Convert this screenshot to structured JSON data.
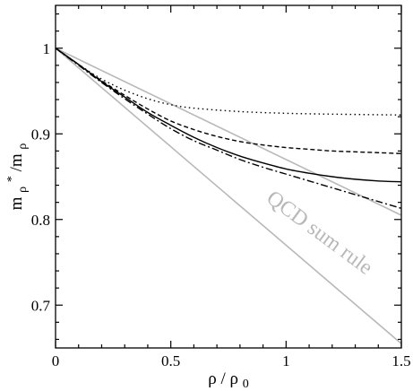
{
  "chart_data": {
    "type": "line",
    "xlabel": {
      "main": "ρ / ρ",
      "sub": "0"
    },
    "ylabel": {
      "main": "m",
      "sub1": "ρ",
      "sup": "*",
      "mid": "/m",
      "sub2": "ρ"
    },
    "xlim": [
      0,
      1.5
    ],
    "ylim": [
      0.65,
      1.05
    ],
    "xticks": [
      {
        "value": 0,
        "label": "0"
      },
      {
        "value": 0.5,
        "label": "0.5"
      },
      {
        "value": 1,
        "label": "1"
      },
      {
        "value": 1.5,
        "label": "1.5"
      }
    ],
    "yticks": [
      {
        "value": 0.7,
        "label": "0.7"
      },
      {
        "value": 0.8,
        "label": "0.8"
      },
      {
        "value": 0.9,
        "label": "0.9"
      },
      {
        "value": 1.0,
        "label": "1"
      }
    ],
    "grid": false,
    "annotation": {
      "text": "QCD sum rule",
      "color": "#b8b8b8"
    },
    "series": [
      {
        "style": "band-upper",
        "color": "#b8b8b8",
        "dash": "solid",
        "x": [
          0,
          1.5
        ],
        "y": [
          1.0,
          0.805
        ]
      },
      {
        "style": "band-lower",
        "color": "#b8b8b8",
        "dash": "solid",
        "x": [
          0,
          1.5
        ],
        "y": [
          1.0,
          0.655
        ]
      },
      {
        "style": "dotted",
        "color": "#000000",
        "dash": "dotted",
        "x": [
          0,
          0.1,
          0.2,
          0.3,
          0.4,
          0.5,
          0.6,
          0.8,
          1.0,
          1.2,
          1.5
        ],
        "y": [
          1.0,
          0.981,
          0.964,
          0.951,
          0.941,
          0.934,
          0.93,
          0.926,
          0.924,
          0.923,
          0.922
        ]
      },
      {
        "style": "dashed",
        "color": "#000000",
        "dash": "dashed",
        "x": [
          0,
          0.1,
          0.2,
          0.3,
          0.4,
          0.5,
          0.6,
          0.7,
          0.8,
          0.9,
          1.0,
          1.1,
          1.2,
          1.3,
          1.4,
          1.5
        ],
        "y": [
          1.0,
          0.981,
          0.962,
          0.945,
          0.929,
          0.915,
          0.905,
          0.897,
          0.891,
          0.887,
          0.884,
          0.882,
          0.88,
          0.879,
          0.878,
          0.877
        ]
      },
      {
        "style": "solid",
        "color": "#000000",
        "dash": "solid",
        "x": [
          0,
          0.1,
          0.2,
          0.3,
          0.4,
          0.5,
          0.6,
          0.7,
          0.8,
          0.9,
          1.0,
          1.1,
          1.2,
          1.3,
          1.4,
          1.5
        ],
        "y": [
          1.0,
          0.981,
          0.961,
          0.943,
          0.925,
          0.91,
          0.896,
          0.884,
          0.874,
          0.866,
          0.859,
          0.854,
          0.85,
          0.847,
          0.845,
          0.844
        ]
      },
      {
        "style": "dash-dot",
        "color": "#000000",
        "dash": "dash-dot",
        "x": [
          0,
          0.1,
          0.2,
          0.3,
          0.4,
          0.5,
          0.6,
          0.7,
          0.8,
          0.9,
          1.0,
          1.1,
          1.2,
          1.3,
          1.4,
          1.5
        ],
        "y": [
          1.0,
          0.98,
          0.96,
          0.941,
          0.923,
          0.906,
          0.892,
          0.881,
          0.87,
          0.861,
          0.853,
          0.845,
          0.837,
          0.829,
          0.821,
          0.813
        ]
      }
    ]
  }
}
